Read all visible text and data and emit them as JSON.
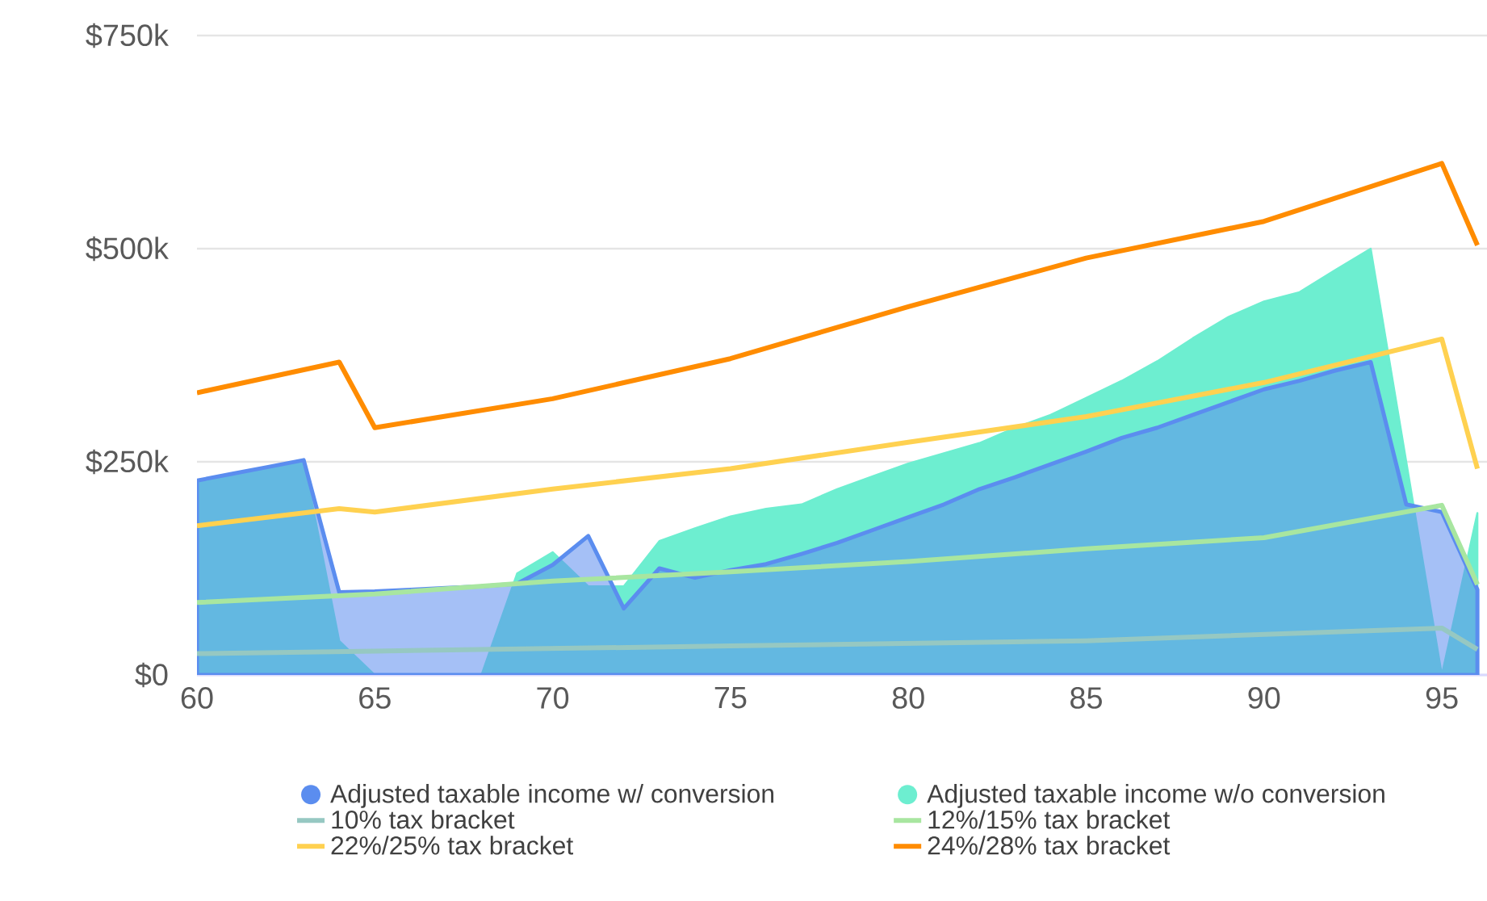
{
  "chart_data": {
    "type": "area",
    "x": [
      60,
      61,
      62,
      63,
      64,
      65,
      66,
      67,
      68,
      69,
      70,
      71,
      72,
      73,
      74,
      75,
      76,
      77,
      78,
      79,
      80,
      81,
      82,
      83,
      84,
      85,
      86,
      87,
      88,
      89,
      90,
      91,
      92,
      93,
      94,
      95,
      96
    ],
    "series": [
      {
        "name": "Adjusted taxable income w/ conversion",
        "color": "#5b8def",
        "values": [
          228,
          236,
          244,
          252,
          97,
          98,
          100,
          102,
          104,
          107,
          129,
          163,
          78,
          125,
          114,
          123,
          130,
          142,
          155,
          170,
          185,
          200,
          218,
          232,
          247,
          262,
          278,
          290,
          305,
          320,
          335,
          345,
          357,
          367,
          200,
          191,
          100
        ]
      },
      {
        "name": "Adjusted taxable income w/o conversion",
        "color": "#6deed0",
        "values": [
          228,
          236,
          244,
          252,
          40,
          0,
          0,
          0,
          0,
          119,
          144,
          104,
          104,
          157,
          172,
          186,
          195,
          200,
          218,
          233,
          248,
          260,
          272,
          290,
          305,
          325,
          345,
          368,
          395,
          420,
          438,
          449,
          475,
          500,
          250,
          0,
          190
        ]
      },
      {
        "name": "10% tax bracket",
        "type": "line",
        "color": "#96c8c2",
        "x": [
          60,
          65,
          75,
          85,
          95,
          96
        ],
        "values": [
          25,
          28,
          34,
          40,
          55,
          30
        ]
      },
      {
        "name": "12%/15% tax bracket",
        "type": "line",
        "color": "#a8e6a0",
        "x": [
          60,
          65,
          70,
          75,
          80,
          85,
          90,
          95,
          96
        ],
        "values": [
          85,
          95,
          110,
          121,
          133,
          148,
          161,
          199,
          106
        ]
      },
      {
        "name": "22%/25% tax bracket",
        "type": "line",
        "color": "#ffd150",
        "x": [
          60,
          64,
          65,
          70,
          75,
          80,
          85,
          90,
          95,
          96
        ],
        "values": [
          175,
          195,
          191,
          218,
          242,
          273,
          303,
          343,
          394,
          242
        ]
      },
      {
        "name": "24%/28% tax bracket",
        "type": "line",
        "color": "#ff8c00",
        "x": [
          60,
          64,
          65,
          70,
          75,
          80,
          85,
          90,
          95,
          96
        ],
        "values": [
          331,
          367,
          290,
          324,
          371,
          432,
          489,
          532,
          600,
          504
        ]
      }
    ],
    "xlim": [
      60,
      96.27
    ],
    "ylim": [
      0,
      750
    ],
    "xticks": [
      60,
      65,
      70,
      75,
      80,
      85,
      90,
      95
    ],
    "yticks": [
      {
        "value": 0,
        "label": "$0"
      },
      {
        "value": 250,
        "label": "$250k"
      },
      {
        "value": 500,
        "label": "$500k"
      },
      {
        "value": 750,
        "label": "$750k"
      }
    ],
    "grid": "y",
    "legend": "bottom",
    "marker": "none",
    "line_style": "solid"
  }
}
